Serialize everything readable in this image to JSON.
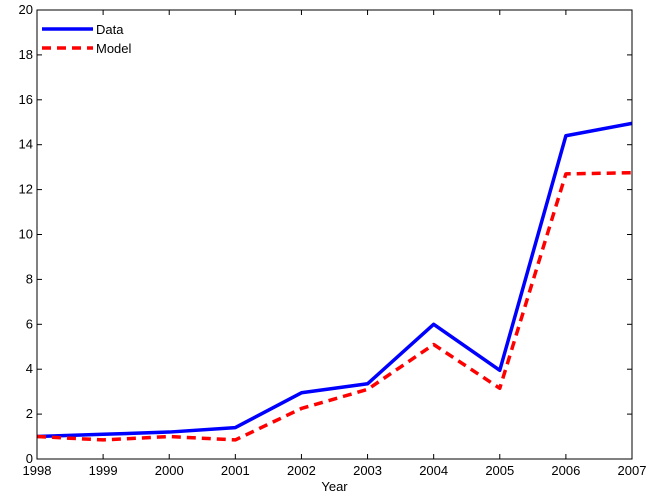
{
  "chart_data": {
    "type": "line",
    "title": "",
    "xlabel": "Year",
    "ylabel": "",
    "x": [
      1998,
      1999,
      2000,
      2001,
      2002,
      2003,
      2004,
      2005,
      2006,
      2007
    ],
    "xlim": [
      1998,
      2007
    ],
    "ylim": [
      0,
      20
    ],
    "xticks": [
      1998,
      1999,
      2000,
      2001,
      2002,
      2003,
      2004,
      2005,
      2006,
      2007
    ],
    "yticks": [
      0,
      2,
      4,
      6,
      8,
      10,
      12,
      14,
      16,
      18,
      20
    ],
    "grid": false,
    "legend_position": "top-left",
    "series": [
      {
        "name": "Data",
        "color": "#0000ff",
        "style": "solid",
        "values": [
          1.0,
          1.1,
          1.2,
          1.4,
          2.95,
          3.35,
          6.0,
          3.95,
          14.4,
          14.95
        ]
      },
      {
        "name": "Model",
        "color": "#ff0000",
        "style": "dashed",
        "values": [
          1.0,
          0.85,
          1.0,
          0.85,
          2.25,
          3.1,
          5.1,
          3.15,
          12.7,
          12.75
        ]
      }
    ]
  }
}
